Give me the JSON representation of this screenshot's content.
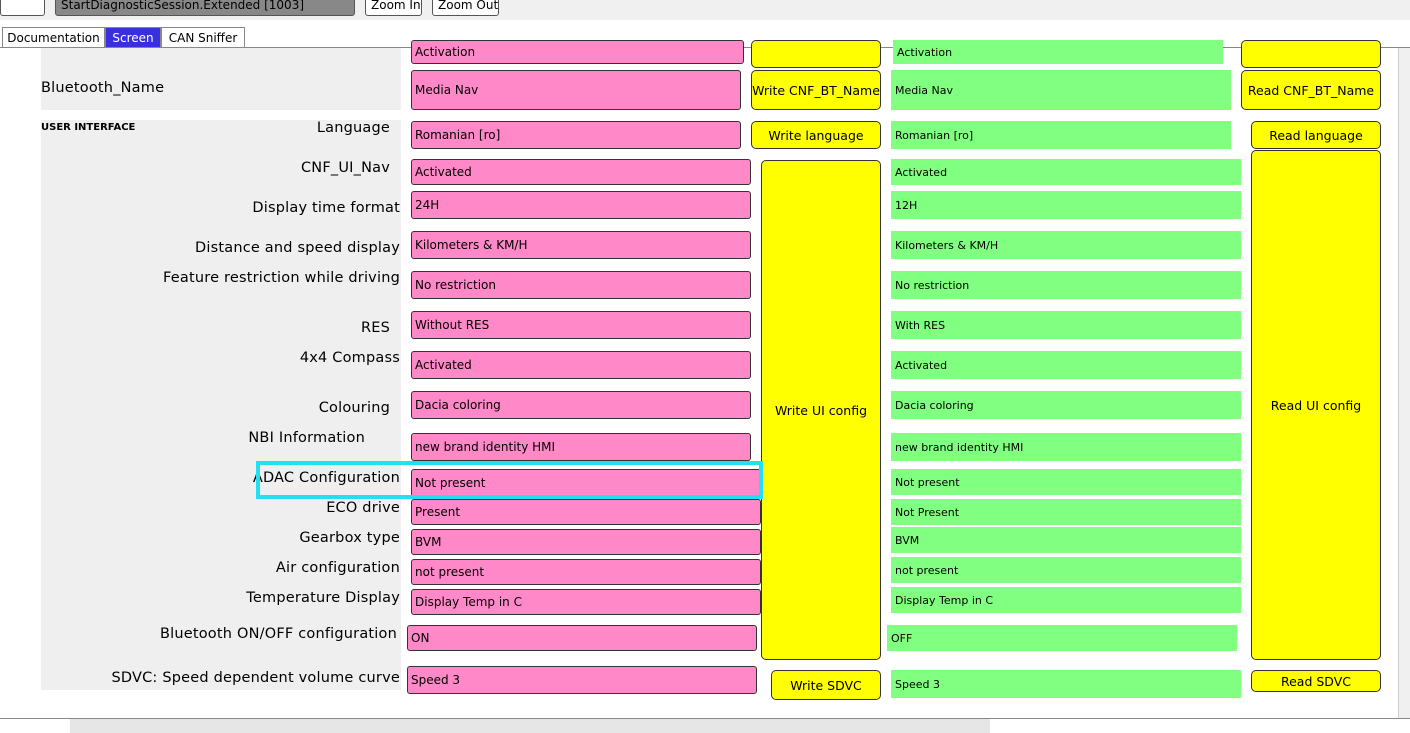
{
  "toolbar": {
    "session": "StartDiagnosticSession.Extended [1003]",
    "zoom_in": "Zoom In",
    "zoom_out": "Zoom Out"
  },
  "tabs": [
    "Documentation",
    "Screen",
    "CAN Sniffer"
  ],
  "section": "USER INTERFACE",
  "top_row": {
    "write": "Activation",
    "read": "Activation"
  },
  "rows": [
    {
      "label": "Bluetooth_Name",
      "write": "Media Nav",
      "read": "Media Nav"
    },
    {
      "label": "Language",
      "write": "Romanian [ro]",
      "read": "Romanian [ro]"
    },
    {
      "label": "CNF_UI_Nav",
      "write": "Activated",
      "read": "Activated"
    },
    {
      "label": "Display time format",
      "write": "24H",
      "read": "12H"
    },
    {
      "label": "Distance and speed display",
      "write": "Kilometers & KM/H",
      "read": "Kilometers & KM/H"
    },
    {
      "label": "Feature restriction while driving",
      "write": "No restriction",
      "read": "No restriction"
    },
    {
      "label": "RES",
      "write": "Without RES",
      "read": "With RES"
    },
    {
      "label": "4x4 Compass",
      "write": "Activated",
      "read": "Activated"
    },
    {
      "label": "Colouring",
      "write": "Dacia coloring",
      "read": "Dacia coloring"
    },
    {
      "label": "NBI Information",
      "write": "new brand identity HMI",
      "read": "new brand identity HMI"
    },
    {
      "label": "ADAC Configuration",
      "write": "Not present",
      "read": "Not present"
    },
    {
      "label": "ECO drive",
      "write": "Present",
      "read": "Not Present"
    },
    {
      "label": "Gearbox type",
      "write": "BVM",
      "read": "BVM"
    },
    {
      "label": "Air configuration",
      "write": "not present",
      "read": "not present"
    },
    {
      "label": "Temperature Display",
      "write": "Display Temp in C",
      "read": "Display Temp in C"
    },
    {
      "label": "Bluetooth ON/OFF configuration",
      "write": "ON",
      "read": "OFF"
    },
    {
      "label": "SDVC: Speed dependent volume curve",
      "write": "Speed 3",
      "read": "Speed 3"
    }
  ],
  "buttons": {
    "write_bt": "Write CNF_BT_Name",
    "read_bt": "Read CNF_BT_Name",
    "write_language": "Write language",
    "read_language": "Read language",
    "write_ui": "Write UI config",
    "read_ui": "Read UI config",
    "write_sdvc": "Write SDVC",
    "read_sdvc": "Read SDVC"
  }
}
